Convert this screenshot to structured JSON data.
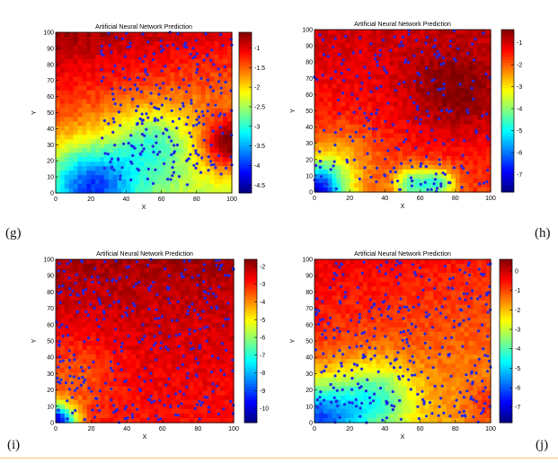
{
  "panel_tags": [
    "(g)",
    "(h)",
    "(i)",
    "(j)"
  ],
  "colors": {
    "marker": "#1f27e6",
    "rule": "#f5c27a"
  },
  "chart_data": [
    {
      "type": "heatmap",
      "title": "Artificial Neural Network Prediction",
      "xlabel": "X",
      "ylabel": "Y",
      "xlim": [
        0,
        100
      ],
      "ylim": [
        0,
        100
      ],
      "xticks": [
        0,
        20,
        40,
        60,
        80,
        100
      ],
      "yticks": [
        0,
        10,
        20,
        30,
        40,
        50,
        60,
        70,
        80,
        90,
        100
      ],
      "colorbar": {
        "min": -4.7,
        "max": -0.6,
        "ticks": [
          -1,
          -1.5,
          -2,
          -2.5,
          -3,
          -3.5,
          -4,
          -4.5
        ],
        "colormap": "jet"
      },
      "overlay": "scatter points (blue)"
    },
    {
      "type": "heatmap",
      "title": "Artificial Neural Network Prediction",
      "xlabel": "X",
      "ylabel": "Y",
      "xlim": [
        0,
        100
      ],
      "ylim": [
        0,
        100
      ],
      "xticks": [
        0,
        20,
        40,
        60,
        80,
        100
      ],
      "yticks": [
        0,
        10,
        20,
        30,
        40,
        50,
        60,
        70,
        80,
        90,
        100
      ],
      "colorbar": {
        "min": -7.8,
        "max": -0.4,
        "ticks": [
          -1,
          -2,
          -3,
          -4,
          -5,
          -6,
          -7
        ],
        "colormap": "jet"
      },
      "overlay": "scatter points (blue)"
    },
    {
      "type": "heatmap",
      "title": "Artificial Neural Network Prediction",
      "xlabel": "X",
      "ylabel": "Y",
      "xlim": [
        0,
        100
      ],
      "ylim": [
        0,
        100
      ],
      "xticks": [
        0,
        20,
        40,
        60,
        80,
        100
      ],
      "yticks": [
        0,
        10,
        20,
        30,
        40,
        50,
        60,
        70,
        80,
        90,
        100
      ],
      "colorbar": {
        "min": -10.8,
        "max": -1.6,
        "ticks": [
          -2,
          -3,
          -4,
          -5,
          -6,
          -7,
          -8,
          -9,
          -10
        ],
        "colormap": "jet"
      },
      "overlay": "scatter points (blue)"
    },
    {
      "type": "heatmap",
      "title": "Artificial Neural Network Prediction",
      "xlabel": "X",
      "ylabel": "Y",
      "xlim": [
        0,
        100
      ],
      "ylim": [
        0,
        100
      ],
      "xticks": [
        0,
        20,
        40,
        60,
        80,
        100
      ],
      "yticks": [
        0,
        10,
        20,
        30,
        40,
        50,
        60,
        70,
        80,
        90,
        100
      ],
      "colorbar": {
        "min": -7.8,
        "max": 0.6,
        "ticks": [
          0,
          -1,
          -2,
          -3,
          -4,
          -5,
          -6,
          -7
        ],
        "colormap": "jet"
      },
      "overlay": "scatter points (blue)"
    }
  ]
}
